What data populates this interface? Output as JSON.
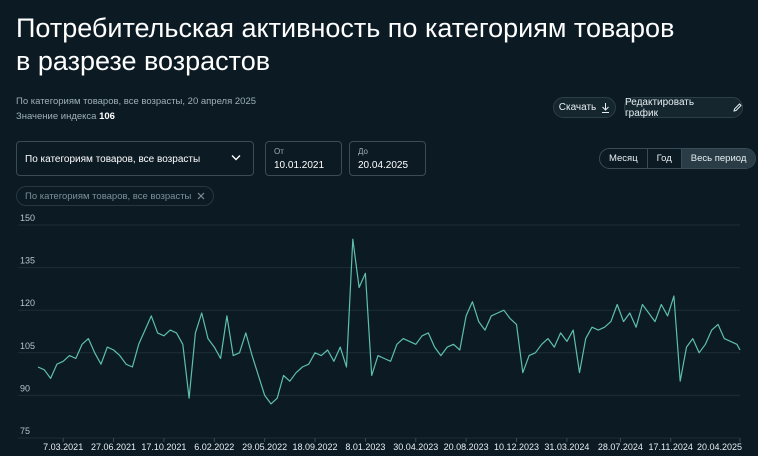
{
  "header": {
    "title": [
      "Потребительская активность по категориям товаров",
      "в разрезе возрастов"
    ],
    "subtitle": "По категориям товаров, все возрасты, 20 апреля 2025",
    "index_label": "Значение индекса",
    "index_value": 106
  },
  "actions": {
    "download": "Скачать",
    "edit": "Редактировать график"
  },
  "filters": {
    "category": "По категориям товаров, все возрасты",
    "from_label": "От",
    "from": "10.01.2021",
    "to_label": "До",
    "to": "20.04.2025",
    "periods": [
      "Месяц",
      "Год",
      "Весь период"
    ],
    "active_period": 2,
    "chip": "По категориям товаров, все возрасты"
  },
  "chart_data": {
    "type": "line",
    "x": [
      "10.01.2021",
      "24.01.2021",
      "7.02.2021",
      "21.02.2021",
      "7.03.2021",
      "21.03.2021",
      "4.04.2021",
      "18.04.2021",
      "2.05.2021",
      "16.05.2021",
      "30.05.2021",
      "13.06.2021",
      "27.06.2021",
      "11.07.2021",
      "25.07.2021",
      "8.08.2021",
      "22.08.2021",
      "5.09.2021",
      "19.09.2021",
      "3.10.2021",
      "17.10.2021",
      "31.10.2021",
      "14.11.2021",
      "28.11.2021",
      "12.12.2021",
      "26.12.2021",
      "9.01.2022",
      "23.01.2022",
      "6.02.2022",
      "20.02.2022",
      "6.03.2022",
      "20.03.2022",
      "3.04.2022",
      "17.04.2022",
      "1.05.2022",
      "15.05.2022",
      "29.05.2022",
      "12.06.2022",
      "26.06.2022",
      "10.07.2022",
      "24.07.2022",
      "7.08.2022",
      "21.08.2022",
      "4.09.2022",
      "18.09.2022",
      "2.10.2022",
      "16.10.2022",
      "30.10.2022",
      "13.11.2022",
      "27.11.2022",
      "11.12.2022",
      "25.12.2022",
      "8.01.2023",
      "22.01.2023",
      "5.02.2023",
      "19.02.2023",
      "5.03.2023",
      "19.03.2023",
      "2.04.2023",
      "16.04.2023",
      "30.04.2023",
      "14.05.2023",
      "28.05.2023",
      "11.06.2023",
      "25.06.2023",
      "9.07.2023",
      "23.07.2023",
      "6.08.2023",
      "20.08.2023",
      "3.09.2023",
      "17.09.2023",
      "1.10.2023",
      "15.10.2023",
      "29.10.2023",
      "12.11.2023",
      "26.11.2023",
      "10.12.2023",
      "24.12.2023",
      "7.01.2024",
      "21.01.2024",
      "4.02.2024",
      "18.02.2024",
      "3.03.2024",
      "17.03.2024",
      "31.03.2024",
      "14.04.2024",
      "28.04.2024",
      "12.05.2024",
      "26.05.2024",
      "9.06.2024",
      "23.06.2024",
      "7.07.2024",
      "21.07.2024",
      "4.08.2024",
      "18.08.2024",
      "1.09.2024",
      "15.09.2024",
      "29.09.2024",
      "13.10.2024",
      "27.10.2024",
      "10.11.2024",
      "24.11.2024",
      "8.12.2024",
      "22.12.2024",
      "5.01.2025",
      "19.01.2025",
      "2.02.2025",
      "16.02.2025",
      "2.03.2025",
      "16.03.2025",
      "30.03.2025",
      "13.04.2025",
      "20.04.2025"
    ],
    "values": [
      100,
      99,
      96,
      101,
      102,
      104,
      103,
      108,
      110,
      105,
      101,
      107,
      106,
      104,
      101,
      100,
      108,
      113,
      118,
      112,
      111,
      113,
      112,
      108,
      89,
      112,
      119,
      110,
      107,
      103,
      118,
      104,
      105,
      112,
      104,
      97,
      90,
      87,
      89,
      97,
      95,
      98,
      100,
      101,
      105,
      104,
      106,
      102,
      107,
      100,
      145,
      128,
      133,
      97,
      104,
      103,
      102,
      108,
      110,
      109,
      108,
      111,
      112,
      107,
      104,
      107,
      108,
      106,
      118,
      123,
      116,
      113,
      118,
      119,
      120,
      117,
      115,
      98,
      104,
      105,
      108,
      110,
      107,
      112,
      109,
      113,
      98,
      110,
      114,
      113,
      114,
      116,
      122,
      116,
      119,
      114,
      122,
      119,
      116,
      122,
      118,
      125,
      95,
      107,
      110,
      105,
      108,
      113,
      115,
      110,
      109,
      108,
      106
    ],
    "color": "#5fbfae",
    "xlim": [
      "10.01.2021",
      "20.04.2025"
    ],
    "xticks": [
      "7.03.2021",
      "27.06.2021",
      "17.10.2021",
      "6.02.2022",
      "29.05.2022",
      "18.09.2022",
      "8.01.2023",
      "30.04.2023",
      "20.08.2023",
      "10.12.2023",
      "31.03.2024",
      "28.07.2024",
      "17.11.2024",
      "20.04.2025"
    ],
    "ylim": [
      75,
      150
    ],
    "yticks": [
      75,
      90,
      105,
      120,
      135,
      150
    ],
    "grid": true
  }
}
